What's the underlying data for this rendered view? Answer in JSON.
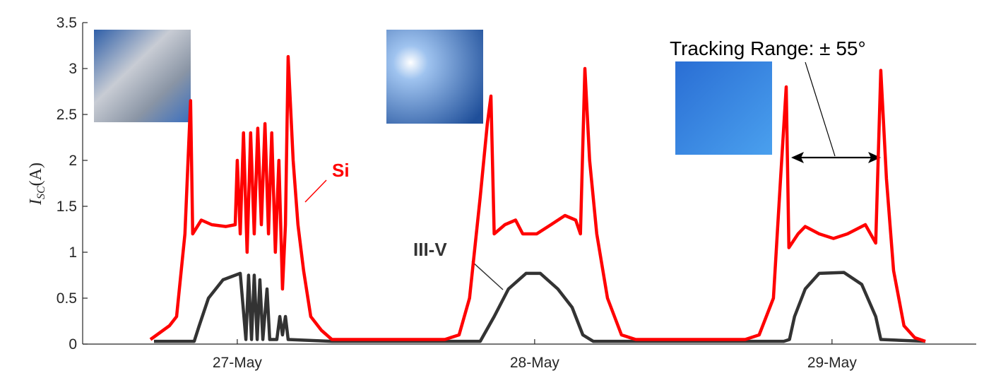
{
  "chart_data": {
    "type": "line",
    "ylabel": {
      "main": "I",
      "subscript": "SC",
      "unit": "(A)"
    },
    "xlim": [
      26.48,
      29.485
    ],
    "xticks": [
      {
        "value": 27,
        "label": "27-May"
      },
      {
        "value": 28,
        "label": "28-May"
      },
      {
        "value": 29,
        "label": "29-May"
      }
    ],
    "ylim": [
      0,
      3.5
    ],
    "yticks": [
      0,
      0.5,
      1,
      1.5,
      2,
      2.5,
      3,
      3.5
    ],
    "grid": false,
    "series": [
      {
        "name": "Si",
        "color": "#ff0000",
        "x": [
          26.708,
          26.772,
          26.796,
          26.824,
          26.843,
          26.85,
          26.879,
          26.914,
          26.962,
          26.993,
          27.0,
          27.01,
          27.021,
          27.033,
          27.045,
          27.057,
          27.069,
          27.081,
          27.093,
          27.105,
          27.116,
          27.128,
          27.14,
          27.152,
          27.162,
          27.171,
          27.188,
          27.204,
          27.223,
          27.247,
          27.283,
          27.318,
          27.698,
          27.746,
          27.781,
          27.817,
          27.841,
          27.853,
          27.864,
          27.9,
          27.936,
          27.96,
          28.007,
          28.055,
          28.102,
          28.138,
          28.154,
          28.169,
          28.185,
          28.209,
          28.245,
          28.292,
          28.34,
          28.708,
          28.755,
          28.803,
          28.827,
          28.846,
          28.855,
          28.886,
          28.91,
          28.957,
          29.005,
          29.052,
          29.112,
          29.147,
          29.164,
          29.183,
          29.207,
          29.242,
          29.278,
          29.314
        ],
        "values": [
          0.05,
          0.2,
          0.3,
          1.2,
          2.65,
          1.2,
          1.35,
          1.3,
          1.28,
          1.3,
          2.0,
          1.2,
          2.3,
          1.0,
          2.3,
          1.2,
          2.35,
          1.3,
          2.4,
          1.2,
          2.3,
          1.0,
          2.0,
          0.6,
          1.3,
          3.13,
          2.0,
          1.3,
          0.8,
          0.3,
          0.15,
          0.05,
          0.05,
          0.1,
          0.5,
          1.6,
          2.4,
          2.7,
          1.2,
          1.3,
          1.35,
          1.2,
          1.2,
          1.3,
          1.4,
          1.35,
          1.2,
          3.0,
          2.0,
          1.2,
          0.5,
          0.1,
          0.05,
          0.05,
          0.1,
          0.5,
          1.8,
          2.8,
          1.05,
          1.2,
          1.28,
          1.2,
          1.15,
          1.2,
          1.3,
          1.1,
          2.98,
          1.8,
          0.8,
          0.2,
          0.07,
          0.03
        ]
      },
      {
        "name": "III-V",
        "color": "#333333",
        "x": [
          26.72,
          26.855,
          26.872,
          26.903,
          26.952,
          27.01,
          27.029,
          27.038,
          27.048,
          27.057,
          27.067,
          27.076,
          27.086,
          27.1,
          27.109,
          27.133,
          27.143,
          27.152,
          27.162,
          27.171,
          27.318,
          27.817,
          27.864,
          27.912,
          27.971,
          28.019,
          28.078,
          28.126,
          28.162,
          28.197,
          28.838,
          28.857,
          28.874,
          28.91,
          28.957,
          29.04,
          29.1,
          29.147,
          29.164,
          29.314
        ],
        "values": [
          0.03,
          0.03,
          0.2,
          0.5,
          0.7,
          0.77,
          0.05,
          0.75,
          0.05,
          0.75,
          0.05,
          0.7,
          0.05,
          0.6,
          0.05,
          0.05,
          0.3,
          0.1,
          0.3,
          0.05,
          0.03,
          0.03,
          0.3,
          0.6,
          0.77,
          0.77,
          0.6,
          0.4,
          0.1,
          0.03,
          0.03,
          0.05,
          0.3,
          0.6,
          0.77,
          0.78,
          0.65,
          0.3,
          0.05,
          0.03
        ]
      }
    ],
    "annotations": [
      "Tracking Range: ± 55°"
    ]
  }
}
